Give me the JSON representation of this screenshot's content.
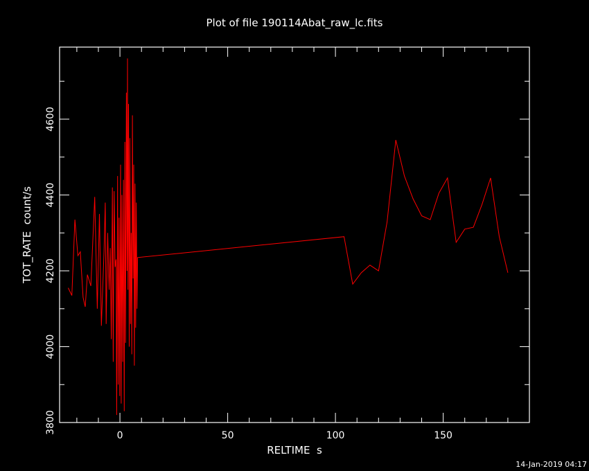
{
  "chart_data": {
    "type": "line",
    "title": "Plot of file 190114Abat_raw_lc.fits",
    "xlabel": "RELTIME  s",
    "ylabel": "TOT_RATE  count/s",
    "xlim": [
      -28,
      190
    ],
    "ylim": [
      3800,
      4790
    ],
    "x_ticks": [
      0,
      50,
      100,
      150
    ],
    "x_tick_labels": [
      "0",
      "50",
      "100",
      "150"
    ],
    "y_ticks": [
      3800,
      4000,
      4200,
      4400,
      4600
    ],
    "y_tick_labels": [
      "3800",
      "4000",
      "4200",
      "4400",
      "4600"
    ],
    "grid": false,
    "line_color": "#ff0000",
    "series": [
      {
        "x": [
          -24,
          -22.3,
          -20.9,
          -19.5,
          -18.4,
          -17.1,
          -16.1,
          -15.1,
          -13.5,
          -11.7,
          -10.5,
          -9.5,
          -8.6,
          -7.4,
          -6.8,
          -6.4,
          -5.7,
          -5.0,
          -4.5,
          -4.0,
          -3.5,
          -3.1,
          -2.7,
          -2.2,
          -1.8,
          -1.5,
          -1.1,
          -0.8,
          -0.4,
          -0.1,
          0.3,
          0.6,
          0.9,
          1.3,
          1.6,
          2.0,
          2.3,
          2.6,
          3.0,
          3.3,
          3.5,
          3.7,
          4.0,
          4.3,
          4.6,
          4.9,
          5.2,
          5.5,
          5.8,
          6.1,
          6.4,
          6.7,
          7.0,
          7.3,
          7.6,
          7.9,
          8.2,
          104,
          108,
          112,
          116,
          120,
          124,
          128,
          132,
          136,
          140,
          144,
          148,
          152,
          156,
          160,
          164,
          168,
          172,
          176,
          180
        ],
        "y": [
          4155,
          4135,
          4335,
          4240,
          4250,
          4130,
          4105,
          4190,
          4160,
          4395,
          4100,
          4350,
          4055,
          4250,
          4380,
          4060,
          4300,
          4150,
          4260,
          4020,
          4420,
          3960,
          4410,
          4210,
          4230,
          3820,
          4450,
          3900,
          4340,
          3870,
          4480,
          3850,
          4400,
          3960,
          4440,
          3830,
          4540,
          4010,
          4670,
          4200,
          4760,
          4150,
          4640,
          4000,
          4550,
          4060,
          4300,
          3980,
          4610,
          4180,
          4480,
          3950,
          4430,
          4050,
          4380,
          4100,
          4235,
          4290,
          4165,
          4195,
          4215,
          4200,
          4330,
          4545,
          4450,
          4390,
          4345,
          4335,
          4405,
          4445,
          4275,
          4310,
          4315,
          4375,
          4445,
          4290,
          4195
        ]
      }
    ]
  },
  "timestamp": "14-Jan-2019 04:17"
}
